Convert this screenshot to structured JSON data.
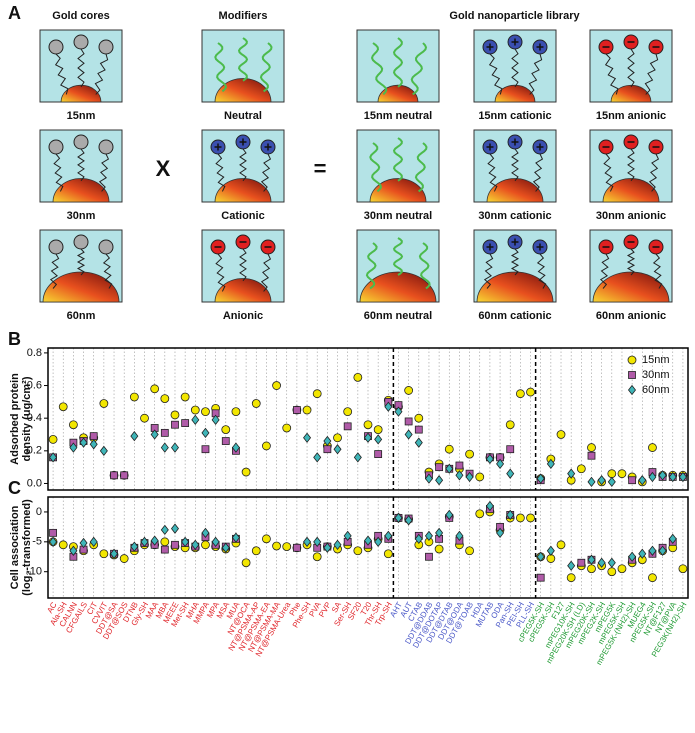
{
  "panel_a": {
    "letter": "A",
    "columns": [
      "Gold cores",
      "Modifiers",
      "Gold nanoparticle library"
    ],
    "cores": [
      "15nm",
      "30nm",
      "60nm"
    ],
    "modifiers": [
      "Neutral",
      "Cationic",
      "Anionic"
    ],
    "operators": [
      "X",
      "="
    ],
    "library": [
      [
        "15nm neutral",
        "15nm cationic",
        "15nm anionic"
      ],
      [
        "30nm neutral",
        "30nm cationic",
        "30nm anionic"
      ],
      [
        "60nm neutral",
        "60nm cationic",
        "60nm anionic"
      ]
    ]
  },
  "chart_data": [
    {
      "type": "scatter",
      "panel": "B",
      "ylabel": [
        "Adsorbed protein",
        "density (ug/cm²)"
      ],
      "ylim": [
        -0.04,
        0.83
      ],
      "yticks": [
        {
          "value": 0,
          "label": "0.0"
        },
        {
          "value": 0.2,
          "label": "0.2"
        },
        {
          "value": 0.4,
          "label": "0.4"
        },
        {
          "value": 0.6,
          "label": "0.6"
        },
        {
          "value": 0.8,
          "label": "0.8"
        }
      ],
      "legend": "top-right",
      "series": [
        {
          "name": "15nm",
          "color": "#f2e600",
          "marker": "circle",
          "values": [
            0.27,
            0.47,
            0.36,
            0.28,
            0.28,
            0.49,
            0.05,
            0.05,
            0.53,
            0.4,
            0.58,
            0.52,
            0.42,
            0.53,
            0.45,
            0.44,
            0.46,
            0.33,
            0.44,
            0.07,
            0.49,
            0.23,
            0.6,
            0.34,
            0.45,
            0.45,
            0.55,
            0.23,
            0.28,
            0.44,
            0.65,
            0.36,
            0.33,
            0.51,
            0.47,
            0.57,
            0.4,
            0.07,
            0.12,
            0.21,
            0.09,
            0.18,
            0.04,
            0.16,
            0.16,
            0.36,
            0.55,
            0.56,
            0.03,
            0.15,
            0.3,
            0.02,
            0.09,
            0.22,
            0.01,
            0.06,
            0.06,
            0.04,
            0.01,
            0.22,
            0.05,
            0.05,
            0.05
          ]
        },
        {
          "name": "30nm",
          "color": "#b05ba8",
          "marker": "square",
          "values": [
            0.16,
            null,
            0.25,
            0.26,
            0.29,
            null,
            0.05,
            0.05,
            null,
            null,
            0.34,
            0.31,
            0.36,
            0.37,
            null,
            0.21,
            0.43,
            0.26,
            0.2,
            null,
            null,
            null,
            null,
            null,
            0.45,
            null,
            null,
            0.21,
            null,
            0.35,
            null,
            0.29,
            0.18,
            0.5,
            0.48,
            0.38,
            0.33,
            0.05,
            0.1,
            0.09,
            0.11,
            0.06,
            null,
            0.16,
            0.16,
            0.21,
            null,
            null,
            0.02,
            null,
            null,
            null,
            null,
            0.17,
            null,
            null,
            null,
            0.02,
            null,
            0.07,
            0.04,
            0.04,
            0.04
          ]
        },
        {
          "name": "60nm",
          "color": "#3fb5b8",
          "marker": "diamond",
          "values": [
            0.16,
            null,
            0.22,
            0.25,
            0.24,
            0.2,
            null,
            null,
            0.29,
            null,
            0.3,
            0.22,
            0.22,
            null,
            0.39,
            0.31,
            0.39,
            null,
            0.22,
            null,
            null,
            null,
            null,
            null,
            null,
            0.28,
            0.16,
            0.26,
            0.21,
            null,
            0.16,
            0.28,
            0.27,
            0.47,
            0.44,
            0.3,
            0.25,
            0.03,
            0.02,
            0.09,
            0.05,
            0.04,
            null,
            0.15,
            0.12,
            0.06,
            null,
            null,
            0.03,
            0.12,
            null,
            0.06,
            null,
            0.01,
            0.02,
            0.01,
            null,
            null,
            0.02,
            0.04,
            0.05,
            0.04,
            0.04
          ]
        }
      ]
    },
    {
      "type": "scatter",
      "panel": "C",
      "ylabel": [
        "Cell association",
        "(log₂-transformed)"
      ],
      "ylim": [
        -14.4,
        2.5
      ],
      "yticks": [
        -10,
        -5,
        0
      ],
      "category_groups": [
        {
          "color": "#e0252a",
          "categories": [
            "AC",
            "Ala-SH",
            "CALNN",
            "CFGAILS",
            "CIT",
            "CVVIT",
            "DDT@SA",
            "DDT@SOS",
            "DTNB",
            "Gly-SH",
            "MAA",
            "MBA",
            "MEEE",
            "Met-SH",
            "MHA",
            "MMPA",
            "MPA",
            "MSA",
            "MUA",
            "NT@OCA",
            "NT@PSMA-AP",
            "NT@PSMA-EA",
            "NT@PSMA-MA",
            "NT@PSMA-Urea",
            "Phe",
            "Phe-SH",
            "PVA",
            "PVP",
            "SA",
            "Ser-SH",
            "SF20",
            "T20",
            "Thr-SH",
            "Trp-SH"
          ]
        },
        {
          "color": "#4a58c8",
          "categories": [
            "AHT",
            "AUT",
            "CTAB",
            "DDT@DDAB",
            "DDT@DOTAP",
            "DDT@DTAB",
            "DDT@ODA",
            "DDT@TOAB",
            "HDA",
            "MUTAB",
            "ODA",
            "Pan-SH",
            "PEI-SH",
            "PLL-SH"
          ]
        },
        {
          "color": "#1e9a32",
          "categories": [
            "cPEG5K-SH",
            "cPEG5K-SH",
            "F127",
            "mPEG10K-SH",
            "mPEG20K-SH (LD)",
            "mPEG20K-SH",
            "mPEG2K-SH",
            "mPEG5K",
            "mPEG5K-SH",
            "mPEG5K-(NH2)-SH",
            "MUEG4",
            "nPEG5K-SH",
            "NT@F127",
            "NT@PVA",
            "PEG3K(NH2)-SH"
          ]
        }
      ],
      "series": [
        {
          "name": "15nm",
          "color": "#f2e600",
          "marker": "circle",
          "values": [
            -5,
            -5.5,
            -5.8,
            -6.5,
            -5.5,
            -7,
            -7.2,
            -7.8,
            -6.5,
            -5.5,
            -5.5,
            -5,
            -5.8,
            -6,
            -6,
            -5.5,
            -5.8,
            -6.2,
            -5.2,
            -8.5,
            -6.5,
            -4.5,
            -5.7,
            -5.8,
            -6,
            -5.5,
            -7.5,
            -5.8,
            -6.2,
            -5.5,
            -6.5,
            -6,
            -4.5,
            -7,
            -1,
            -1.2,
            -5.5,
            -5,
            -6.2,
            -0.8,
            -5.5,
            -6.5,
            -0.3,
            0,
            -3,
            -1,
            -1,
            -1,
            -7.5,
            -7.8,
            -5.5,
            -11,
            -9,
            -9.5,
            -9,
            -10,
            -9.5,
            -8.5,
            -8,
            -11,
            -6.5,
            -6,
            -9.5
          ]
        },
        {
          "name": "30nm",
          "color": "#b05ba8",
          "marker": "square",
          "values": [
            -3.5,
            null,
            -7.5,
            -6.3,
            null,
            null,
            -7,
            null,
            -6,
            -5.2,
            -5.5,
            -6.3,
            -5.5,
            -5.2,
            -5.8,
            -4.2,
            -5.5,
            -5.8,
            -4.5,
            null,
            null,
            null,
            null,
            null,
            -6,
            null,
            -6,
            -5.8,
            null,
            -5,
            null,
            -5.5,
            -4,
            -4.5,
            -1,
            -1.1,
            -4,
            -7.5,
            -4.5,
            -1,
            -4.8,
            null,
            null,
            0.5,
            -2.5,
            -0.5,
            null,
            null,
            -11,
            null,
            null,
            null,
            -8.5,
            -8,
            null,
            null,
            null,
            -8,
            null,
            -7,
            -6,
            -5,
            null
          ]
        },
        {
          "name": "60nm",
          "color": "#3fb5b8",
          "marker": "diamond",
          "values": [
            -5,
            null,
            -6.5,
            -5.2,
            -5,
            null,
            -7,
            null,
            -5.8,
            -5,
            -4.8,
            -3,
            -2.8,
            -5,
            -5.5,
            -3.5,
            -5,
            -6,
            -4.3,
            null,
            null,
            null,
            null,
            null,
            null,
            -5,
            -5,
            -6,
            -5.5,
            -4,
            null,
            -4.8,
            -5,
            -4,
            -1,
            -1.4,
            -4.5,
            -4,
            -3.5,
            -0.5,
            -4,
            null,
            null,
            1,
            -3.5,
            -0.5,
            null,
            null,
            -7.5,
            -6.5,
            null,
            -9,
            null,
            -8,
            -8.5,
            -8.5,
            null,
            -7.5,
            -7,
            -6.5,
            -6.5,
            -4.5,
            null
          ]
        }
      ]
    }
  ]
}
